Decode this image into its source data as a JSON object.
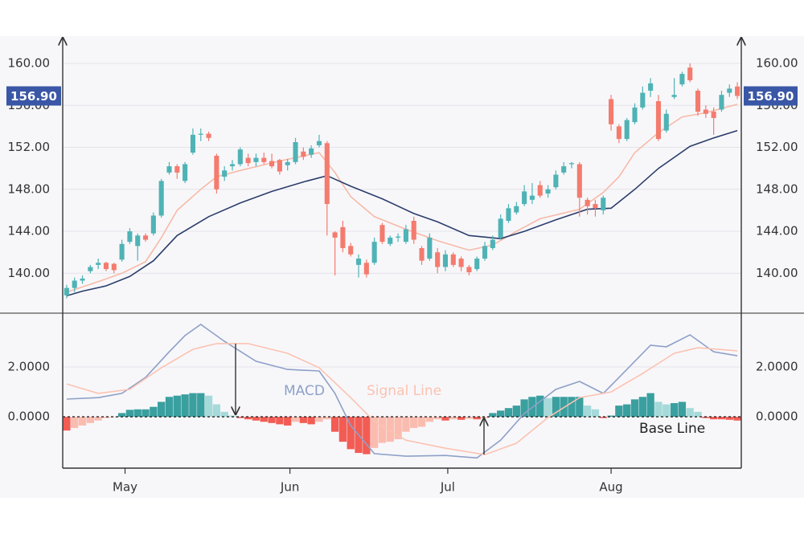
{
  "chart_data": [
    {
      "type": "candlestick",
      "xlim": [
        -0.5,
        85.5
      ],
      "ylim": [
        136.2,
        162.6
      ],
      "yticks": [
        {
          "value": 140,
          "label": "140.00"
        },
        {
          "value": 144,
          "label": "144.00"
        },
        {
          "value": 148,
          "label": "148.00"
        },
        {
          "value": 152,
          "label": "152.00"
        },
        {
          "value": 156,
          "label": "156.00"
        },
        {
          "value": 160,
          "label": "160.00"
        }
      ],
      "grid": true,
      "up_color": "#4fb3b5",
      "down_color": "#f47b6e",
      "last_price": 156.9,
      "last_price_label": "156.90",
      "last_price_color": "#3a56a6",
      "candles": [
        [
          137.9,
          138.9,
          137.6,
          138.6
        ],
        [
          138.6,
          139.6,
          138.2,
          139.3
        ],
        [
          139.3,
          139.8,
          139.0,
          139.5
        ],
        [
          140.2,
          140.8,
          140.0,
          140.6
        ],
        [
          140.8,
          141.4,
          140.4,
          141.0
        ],
        [
          141.0,
          141.1,
          140.2,
          140.4
        ],
        [
          140.9,
          141.0,
          140.0,
          140.3
        ],
        [
          141.3,
          143.2,
          141.1,
          142.8
        ],
        [
          143.0,
          144.3,
          142.8,
          144.0
        ],
        [
          142.6,
          143.8,
          141.2,
          143.6
        ],
        [
          143.6,
          143.8,
          143.0,
          143.2
        ],
        [
          143.8,
          145.8,
          143.6,
          145.5
        ],
        [
          145.5,
          149.0,
          145.3,
          148.8
        ],
        [
          149.6,
          150.6,
          149.4,
          150.2
        ],
        [
          150.2,
          150.4,
          149.0,
          149.6
        ],
        [
          148.8,
          150.6,
          148.6,
          150.4
        ],
        [
          151.5,
          153.8,
          151.3,
          153.2
        ],
        [
          153.2,
          153.8,
          152.6,
          153.3
        ],
        [
          153.3,
          153.5,
          152.6,
          152.9
        ],
        [
          151.2,
          151.4,
          147.6,
          148.0
        ],
        [
          149.2,
          150.2,
          148.8,
          149.8
        ],
        [
          150.2,
          150.8,
          149.8,
          150.4
        ],
        [
          150.4,
          152.0,
          150.2,
          151.8
        ],
        [
          151.0,
          151.4,
          150.2,
          150.5
        ],
        [
          150.6,
          151.4,
          150.2,
          151.0
        ],
        [
          151.0,
          151.5,
          150.4,
          150.6
        ],
        [
          150.7,
          151.4,
          150.0,
          150.2
        ],
        [
          150.8,
          150.9,
          149.4,
          149.7
        ],
        [
          150.3,
          150.9,
          149.8,
          150.6
        ],
        [
          150.6,
          152.9,
          150.4,
          152.5
        ],
        [
          151.6,
          152.0,
          150.8,
          151.1
        ],
        [
          151.3,
          152.2,
          151.0,
          151.9
        ],
        [
          152.2,
          153.2,
          152.0,
          152.6
        ],
        [
          152.4,
          152.6,
          143.6,
          146.6
        ],
        [
          143.9,
          144.0,
          139.8,
          143.4
        ],
        [
          144.4,
          145.0,
          142.0,
          142.4
        ],
        [
          142.6,
          142.9,
          141.6,
          141.8
        ],
        [
          140.8,
          141.8,
          139.6,
          141.4
        ],
        [
          141.0,
          141.3,
          139.6,
          139.9
        ],
        [
          141.0,
          143.4,
          140.8,
          143.0
        ],
        [
          144.6,
          144.8,
          142.8,
          143.0
        ],
        [
          142.8,
          143.6,
          142.6,
          143.4
        ],
        [
          143.4,
          143.8,
          143.0,
          143.5
        ],
        [
          143.0,
          144.6,
          142.8,
          144.2
        ],
        [
          145.0,
          145.4,
          142.8,
          143.2
        ],
        [
          142.4,
          142.6,
          140.8,
          141.2
        ],
        [
          141.4,
          143.8,
          141.2,
          143.4
        ],
        [
          142.0,
          142.4,
          140.0,
          140.6
        ],
        [
          140.6,
          142.2,
          140.2,
          141.8
        ],
        [
          141.8,
          142.0,
          140.6,
          140.8
        ],
        [
          141.4,
          141.6,
          140.2,
          140.6
        ],
        [
          140.6,
          140.8,
          139.8,
          140.1
        ],
        [
          140.4,
          141.6,
          140.2,
          141.4
        ],
        [
          141.4,
          143.0,
          141.2,
          142.6
        ],
        [
          142.4,
          143.6,
          142.2,
          143.2
        ],
        [
          143.4,
          145.6,
          143.2,
          145.2
        ],
        [
          145.0,
          146.6,
          144.8,
          146.2
        ],
        [
          145.8,
          146.8,
          145.6,
          146.4
        ],
        [
          146.6,
          148.4,
          146.4,
          147.8
        ],
        [
          147.0,
          148.6,
          146.6,
          147.4
        ],
        [
          148.4,
          148.8,
          147.2,
          147.4
        ],
        [
          147.6,
          148.4,
          147.2,
          148.0
        ],
        [
          148.2,
          149.8,
          148.0,
          149.4
        ],
        [
          149.6,
          150.6,
          149.4,
          150.2
        ],
        [
          150.4,
          150.6,
          150.0,
          150.5
        ],
        [
          150.4,
          150.6,
          145.4,
          147.2
        ],
        [
          147.0,
          147.2,
          145.6,
          146.4
        ],
        [
          146.6,
          147.0,
          145.4,
          146.2
        ],
        [
          146.0,
          147.4,
          145.6,
          147.2
        ],
        [
          156.6,
          157.0,
          153.6,
          154.2
        ],
        [
          154.0,
          154.2,
          152.4,
          152.8
        ],
        [
          152.8,
          154.8,
          152.6,
          154.6
        ],
        [
          154.4,
          156.2,
          154.2,
          155.8
        ],
        [
          155.8,
          157.8,
          155.6,
          157.2
        ],
        [
          157.4,
          158.6,
          156.8,
          158.1
        ],
        [
          156.4,
          157.0,
          152.6,
          152.8
        ],
        [
          153.6,
          155.6,
          153.4,
          155.2
        ],
        [
          156.8,
          158.6,
          156.6,
          157.0
        ],
        [
          158.0,
          159.2,
          157.8,
          159.0
        ],
        [
          159.6,
          160.0,
          158.2,
          158.4
        ],
        [
          157.4,
          157.6,
          155.0,
          155.4
        ],
        [
          155.6,
          156.0,
          154.8,
          155.2
        ],
        [
          155.4,
          155.8,
          153.2,
          154.8
        ],
        [
          155.6,
          157.4,
          155.4,
          157.0
        ],
        [
          157.2,
          158.0,
          156.8,
          157.6
        ],
        [
          157.8,
          158.2,
          156.6,
          156.9
        ]
      ],
      "series": [
        {
          "color": "#f8b9a6",
          "x": [
            0,
            4,
            7,
            10,
            12,
            14,
            17,
            19,
            22,
            27,
            32,
            34,
            36,
            39,
            43,
            47,
            51,
            54,
            57,
            60,
            65,
            68,
            70,
            72,
            75,
            78,
            81,
            85
          ],
          "values": [
            138.2,
            139.2,
            140.0,
            141.1,
            143.4,
            146.0,
            148.0,
            149.2,
            149.8,
            150.7,
            151.5,
            149.6,
            147.3,
            145.4,
            144.2,
            143.1,
            142.2,
            142.7,
            144.0,
            145.2,
            146.1,
            147.7,
            149.2,
            151.5,
            153.4,
            154.9,
            155.3,
            156.1
          ]
        },
        {
          "color": "#2c3e6b",
          "x": [
            0,
            2,
            5,
            8,
            11,
            14,
            18,
            22,
            26,
            30,
            33,
            36,
            40,
            44,
            47,
            51,
            55,
            58,
            62,
            66,
            69,
            72,
            75,
            79,
            82,
            85
          ],
          "values": [
            137.85,
            138.3,
            138.8,
            139.7,
            141.2,
            143.6,
            145.4,
            146.7,
            147.8,
            148.7,
            149.3,
            148.3,
            147.1,
            145.7,
            144.9,
            143.6,
            143.3,
            144.0,
            145.1,
            146.1,
            146.2,
            148.0,
            150.0,
            152.1,
            152.9,
            153.6
          ]
        }
      ]
    },
    {
      "type": "macd",
      "xlim": [
        -0.5,
        85.5
      ],
      "ylim": [
        -2.06,
        4.16
      ],
      "yticks": [
        {
          "value": 0,
          "label": "0.0000"
        },
        {
          "value": 2,
          "label": "2.0000"
        }
      ],
      "grid": true,
      "xticks": [
        {
          "value": 7.4,
          "label": "May"
        },
        {
          "value": 28.3,
          "label": "Jun"
        },
        {
          "value": 48.3,
          "label": "Jul"
        },
        {
          "value": 69.0,
          "label": "Aug"
        }
      ],
      "series": [
        {
          "name": "MACD",
          "color": "#8ea0c8",
          "x": [
            0,
            4,
            7,
            10,
            13,
            15,
            17,
            20,
            24,
            28,
            32,
            34,
            36,
            39,
            43,
            48,
            52,
            55,
            58,
            62,
            65,
            68,
            70,
            74,
            76,
            79,
            82,
            85
          ],
          "values": [
            0.71,
            0.77,
            0.94,
            1.58,
            2.61,
            3.26,
            3.71,
            3.03,
            2.23,
            1.9,
            1.84,
            0.94,
            -0.35,
            -1.48,
            -1.58,
            -1.55,
            -1.65,
            -0.94,
            0.13,
            1.1,
            1.42,
            0.94,
            1.58,
            2.87,
            2.81,
            3.29,
            2.61,
            2.45
          ]
        },
        {
          "name": "Signal Line",
          "color": "#fcc2b0",
          "x": [
            0,
            4,
            8,
            12,
            16,
            19,
            23,
            28,
            32,
            36,
            39,
            43,
            48,
            53,
            57,
            61,
            65,
            69,
            73,
            77,
            80,
            85
          ],
          "values": [
            1.32,
            0.94,
            1.1,
            1.97,
            2.71,
            2.94,
            2.94,
            2.55,
            1.97,
            0.77,
            -0.19,
            -0.94,
            -1.26,
            -1.52,
            -1.06,
            -0.03,
            0.77,
            1.0,
            1.74,
            2.55,
            2.77,
            2.65
          ]
        }
      ],
      "histogram": [
        -0.55,
        -0.45,
        -0.35,
        -0.25,
        -0.15,
        -0.05,
        -0.02,
        0.15,
        0.28,
        0.3,
        0.3,
        0.4,
        0.6,
        0.8,
        0.85,
        0.9,
        0.95,
        0.95,
        0.85,
        0.5,
        0.2,
        0.05,
        -0.05,
        -0.1,
        -0.15,
        -0.2,
        -0.25,
        -0.3,
        -0.35,
        -0.2,
        -0.25,
        -0.3,
        -0.2,
        -0.1,
        -0.6,
        -1.0,
        -1.3,
        -1.45,
        -1.5,
        -1.25,
        -1.05,
        -1.0,
        -0.9,
        -0.6,
        -0.45,
        -0.4,
        -0.2,
        -0.1,
        -0.15,
        -0.1,
        -0.12,
        -0.08,
        -0.1,
        -0.05,
        0.15,
        0.25,
        0.35,
        0.45,
        0.7,
        0.8,
        0.85,
        0.75,
        0.8,
        0.8,
        0.8,
        0.8,
        0.45,
        0.3,
        -0.05,
        0.05,
        0.45,
        0.5,
        0.7,
        0.8,
        0.95,
        0.6,
        0.5,
        0.55,
        0.6,
        0.35,
        0.2,
        -0.05,
        -0.1,
        -0.1,
        -0.12,
        -0.15
      ],
      "hist_colors": {
        "up_rising": "#3a9f9f",
        "up_falling": "#a6dada",
        "down_falling": "#f25c54",
        "down_rising": "#fbbcb0"
      },
      "baseline_label": "Base Line"
    }
  ]
}
